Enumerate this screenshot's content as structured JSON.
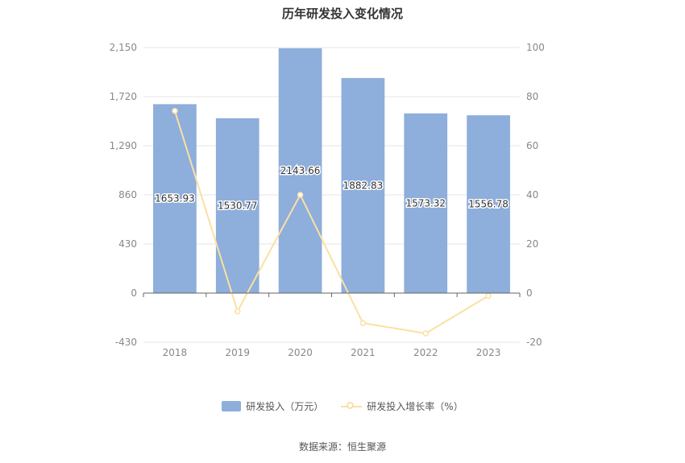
{
  "chart_data": {
    "type": "bar+line",
    "title": "历年研发投入变化情况",
    "categories": [
      "2018",
      "2019",
      "2020",
      "2021",
      "2022",
      "2023"
    ],
    "series": [
      {
        "name": "研发投入（万元）",
        "type": "bar",
        "axis": "left",
        "color": "#8eaedb",
        "values": [
          1653.93,
          1530.77,
          2143.66,
          1882.83,
          1573.32,
          1556.78
        ],
        "labels": [
          "1653.93",
          "1530.77",
          "2143.66",
          "1882.83",
          "1573.32",
          "1556.78"
        ]
      },
      {
        "name": "研发投入增长率（%）",
        "type": "line",
        "axis": "right",
        "color": "#fbe0a3",
        "values": [
          74.2,
          -7.4,
          40.0,
          -12.2,
          -16.4,
          -1.1
        ]
      }
    ],
    "y_left": {
      "min": -430,
      "max": 2150,
      "ticks": [
        -430,
        0,
        430,
        860,
        1290,
        1720,
        2150
      ],
      "tick_labels": [
        "-430",
        "0",
        "430",
        "860",
        "1,290",
        "1,720",
        "2,150"
      ]
    },
    "y_right": {
      "min": -20,
      "max": 100,
      "ticks": [
        -20,
        0,
        20,
        40,
        60,
        80,
        100
      ],
      "tick_labels": [
        "-20",
        "0",
        "20",
        "40",
        "60",
        "80",
        "100"
      ]
    },
    "grid": true,
    "legend_position": "bottom"
  },
  "source": "数据来源：恒生聚源"
}
